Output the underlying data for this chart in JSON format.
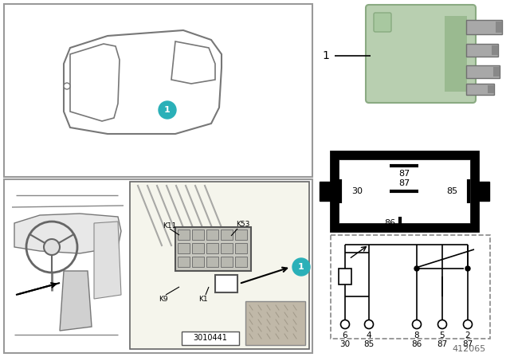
{
  "bg_color": "#ffffff",
  "white": "#ffffff",
  "black": "#000000",
  "teal": "#2ab0b8",
  "relay_green": "#b8cfb0",
  "relay_green_dark": "#9ab89a",
  "gray_light": "#d8d8d8",
  "gray_med": "#aaaaaa",
  "gray_dark": "#666666",
  "border_gray": "#999999",
  "diagram_number": "412065",
  "catalog_number": "3010441",
  "pin_numbers_row1": [
    "6",
    "4",
    "8",
    "5",
    "2"
  ],
  "pin_numbers_row2": [
    "30",
    "85",
    "86",
    "87",
    "87"
  ],
  "pin_box_labels": [
    "87",
    "30",
    "87",
    "85",
    "86"
  ],
  "fig_w": 6.4,
  "fig_h": 4.48,
  "dpi": 100
}
